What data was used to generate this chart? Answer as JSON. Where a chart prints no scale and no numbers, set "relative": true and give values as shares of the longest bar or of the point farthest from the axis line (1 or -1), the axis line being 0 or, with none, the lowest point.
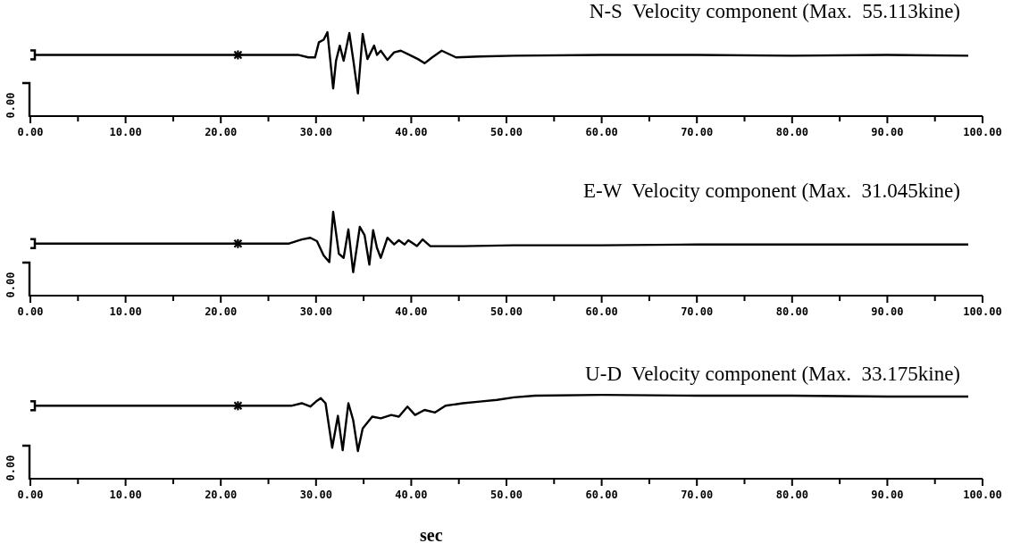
{
  "chart_data": [
    {
      "type": "line",
      "title": "N-S  Velocity component (Max.  55.113kine)",
      "relative": true,
      "xlim": [
        0,
        100
      ],
      "xticks": [
        {
          "value": 0,
          "label": "0.00"
        },
        {
          "value": 10,
          "label": "10.00"
        },
        {
          "value": 20,
          "label": "20.00"
        },
        {
          "value": 30,
          "label": "30.00"
        },
        {
          "value": 40,
          "label": "40.00"
        },
        {
          "value": 50,
          "label": "50.00"
        },
        {
          "value": 60,
          "label": "60.00"
        },
        {
          "value": 70,
          "label": "70.00"
        },
        {
          "value": 80,
          "label": "80.00"
        },
        {
          "value": 90,
          "label": "90.00"
        },
        {
          "value": 100,
          "label": "100.00"
        }
      ],
      "annotations": [
        "0.00"
      ],
      "series": [
        {
          "color": "#000000",
          "x": [
            0,
            28.1,
            29.2,
            29.9,
            30.3,
            30.8,
            31.2,
            31.8,
            32.1,
            32.5,
            32.9,
            33.5,
            33.9,
            34.4,
            34.9,
            35.4,
            36.1,
            36.4,
            36.8,
            37.5,
            38.2,
            38.9,
            39.8,
            40.7,
            41.4,
            42.2,
            43.2,
            44.7,
            47.2,
            50.8,
            60,
            70,
            80,
            90,
            98.5
          ],
          "values": [
            0.73,
            0.73,
            0.7,
            0.7,
            0.88,
            0.91,
            1,
            0.33,
            0.66,
            0.84,
            0.66,
            0.99,
            0.68,
            0.27,
            0.98,
            0.68,
            0.84,
            0.73,
            0.78,
            0.67,
            0.76,
            0.78,
            0.73,
            0.68,
            0.63,
            0.7,
            0.78,
            0.7,
            0.71,
            0.72,
            0.73,
            0.73,
            0.72,
            0.73,
            0.72
          ]
        },
        {
          "type": "scatter",
          "marker": "square",
          "color": "#000000",
          "x": [
            0
          ],
          "values": [
            0.73
          ]
        },
        {
          "type": "scatter",
          "marker": "cross",
          "color": "#000000",
          "x": [
            21.8
          ],
          "values": [
            0.73
          ]
        }
      ]
    },
    {
      "type": "line",
      "title": "E-W  Velocity component (Max.  31.045kine)",
      "relative": true,
      "xlim": [
        0,
        100
      ],
      "xticks": [
        {
          "value": 0,
          "label": "0.00"
        },
        {
          "value": 10,
          "label": "10.00"
        },
        {
          "value": 20,
          "label": "20.00"
        },
        {
          "value": 30,
          "label": "30.00"
        },
        {
          "value": 40,
          "label": "40.00"
        },
        {
          "value": 50,
          "label": "50.00"
        },
        {
          "value": 60,
          "label": "60.00"
        },
        {
          "value": 70,
          "label": "70.00"
        },
        {
          "value": 80,
          "label": "80.00"
        },
        {
          "value": 90,
          "label": "90.00"
        },
        {
          "value": 100,
          "label": "100.00"
        }
      ],
      "annotations": [
        "0.00"
      ],
      "series": [
        {
          "color": "#000000",
          "x": [
            0,
            27.1,
            28.5,
            29.4,
            30.1,
            30.8,
            31.4,
            31.8,
            32.4,
            32.9,
            33.4,
            33.9,
            34.6,
            35.1,
            35.6,
            36.0,
            36.4,
            36.8,
            37.5,
            38.2,
            38.7,
            39.3,
            39.7,
            40.6,
            41.2,
            42.0,
            45.4,
            50.8,
            55,
            60,
            70,
            80,
            90,
            98.5
          ],
          "values": [
            0.62,
            0.62,
            0.67,
            0.69,
            0.65,
            0.48,
            0.4,
            1,
            0.5,
            0.45,
            0.79,
            0.28,
            0.82,
            0.72,
            0.37,
            0.78,
            0.57,
            0.45,
            0.69,
            0.61,
            0.66,
            0.61,
            0.66,
            0.59,
            0.67,
            0.59,
            0.59,
            0.6,
            0.6,
            0.6,
            0.61,
            0.61,
            0.61,
            0.61
          ]
        },
        {
          "type": "scatter",
          "marker": "square",
          "color": "#000000",
          "x": [
            0
          ],
          "values": [
            0.62
          ]
        },
        {
          "type": "scatter",
          "marker": "cross",
          "color": "#000000",
          "x": [
            21.8
          ],
          "values": [
            0.62
          ]
        }
      ]
    },
    {
      "type": "line",
      "title": "U-D  Velocity component (Max.  33.175kine)",
      "xlabel": "sec",
      "relative": true,
      "xlim": [
        0,
        100
      ],
      "xticks": [
        {
          "value": 0,
          "label": "0.00"
        },
        {
          "value": 10,
          "label": "10.00"
        },
        {
          "value": 20,
          "label": "20.00"
        },
        {
          "value": 30,
          "label": "30.00"
        },
        {
          "value": 40,
          "label": "40.00"
        },
        {
          "value": 50,
          "label": "50.00"
        },
        {
          "value": 60,
          "label": "60.00"
        },
        {
          "value": 70,
          "label": "70.00"
        },
        {
          "value": 80,
          "label": "80.00"
        },
        {
          "value": 90,
          "label": "90.00"
        },
        {
          "value": 100,
          "label": "100.00"
        }
      ],
      "annotations": [
        "0.00"
      ],
      "series": [
        {
          "color": "#000000",
          "x": [
            0,
            27.4,
            28.5,
            29.4,
            30.0,
            30.5,
            31.0,
            31.7,
            32.3,
            32.8,
            33.4,
            33.9,
            34.4,
            34.9,
            35.9,
            36.8,
            37.9,
            38.7,
            39.6,
            40.4,
            41.4,
            42.5,
            43.6,
            45.4,
            47.2,
            49.0,
            50.8,
            53.0,
            60,
            70,
            80,
            90,
            98.5
          ],
          "values": [
            0.87,
            0.87,
            0.9,
            0.86,
            0.92,
            0.96,
            0.9,
            0.37,
            0.75,
            0.34,
            0.9,
            0.7,
            0.33,
            0.6,
            0.74,
            0.72,
            0.76,
            0.74,
            0.86,
            0.76,
            0.82,
            0.79,
            0.87,
            0.9,
            0.92,
            0.94,
            0.97,
            0.99,
            1,
            0.99,
            0.99,
            0.98,
            0.98
          ]
        },
        {
          "type": "scatter",
          "marker": "square",
          "color": "#000000",
          "x": [
            0
          ],
          "values": [
            0.87
          ]
        },
        {
          "type": "scatter",
          "marker": "cross",
          "color": "#000000",
          "x": [
            21.8
          ],
          "values": [
            0.87
          ]
        }
      ]
    }
  ]
}
